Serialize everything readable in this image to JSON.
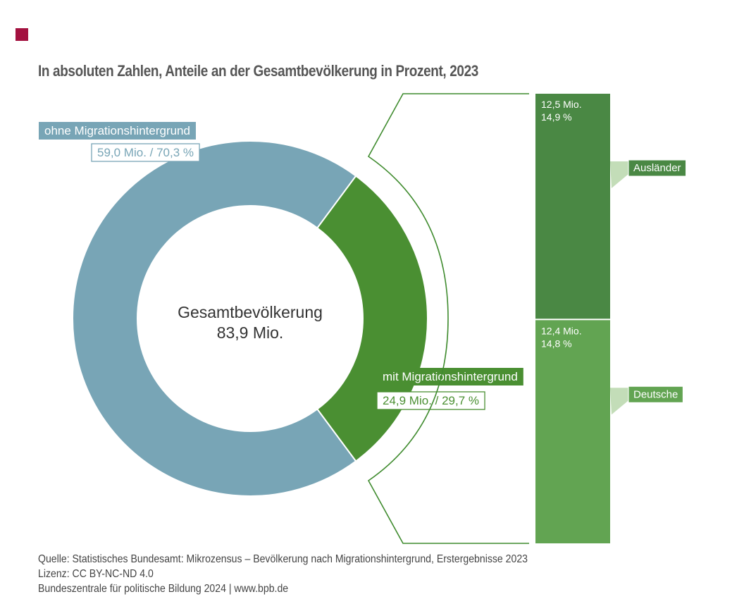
{
  "title": "In absoluten Zahlen, Anteile an der Gesamtbevölkerung in Prozent, 2023",
  "colors": {
    "accent": "#a3113f",
    "ohne": "#78a5b6",
    "mit": "#4a8f32",
    "auslaender": "#4a8844",
    "deutsche": "#62a452",
    "bracket": "#3f8b2e"
  },
  "chart_data": {
    "type": "pie",
    "donut": true,
    "center_label": {
      "line1": "Gesamtbevölkerung",
      "line2": "83,9 Mio."
    },
    "slices": [
      {
        "name": "ohne Migrationshintergrund",
        "value": 59.0,
        "percent": 70.3,
        "label": "59,0 Mio. / 70,3 %"
      },
      {
        "name": "mit Migrationshintergrund",
        "value": 24.9,
        "percent": 29.7,
        "label": "24,9 Mio. / 29,7 %"
      }
    ],
    "breakdown": {
      "type": "stacked-bar",
      "of": "mit Migrationshintergrund",
      "segments": [
        {
          "name": "Ausländer",
          "value": 12.5,
          "percent": 14.9,
          "value_text": "12,5 Mio.",
          "percent_text": "14,9 %"
        },
        {
          "name": "Deutsche",
          "value": 12.4,
          "percent": 14.8,
          "value_text": "12,4 Mio.",
          "percent_text": "14,8 %"
        }
      ]
    }
  },
  "source": {
    "line1": "Quelle: Statistisches Bundesamt: Mikrozensus – Bevölkerung nach Migrationshintergrund, Erstergebnisse 2023",
    "line2": "Lizenz: CC BY-NC-ND 4.0",
    "line3": "Bundeszentrale für politische Bildung 2024 | www.bpb.de"
  }
}
